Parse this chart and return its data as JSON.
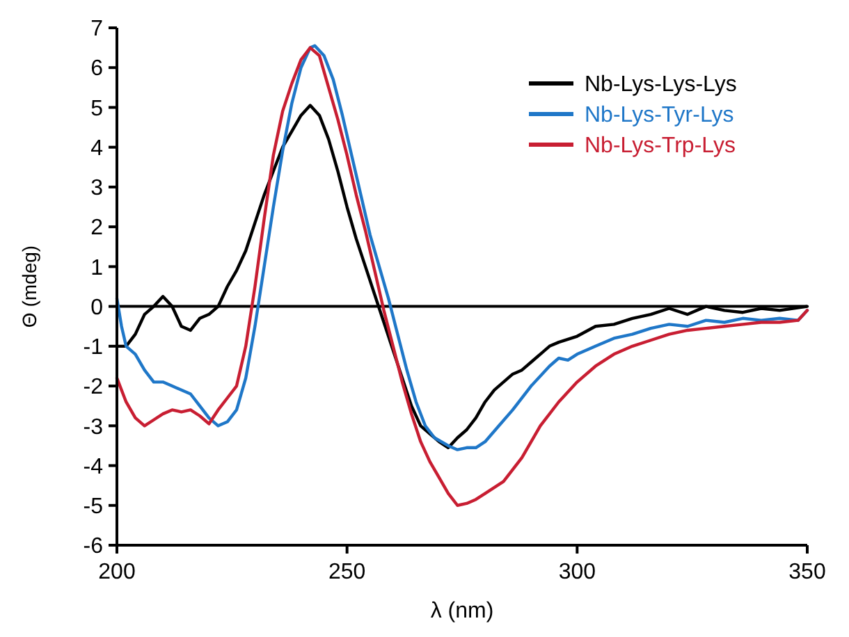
{
  "chart_data": {
    "type": "line",
    "xlabel": "λ (nm)",
    "ylabel": "Θ (mdeg)",
    "xlim": [
      200,
      350
    ],
    "xticks": [
      200,
      250,
      300,
      350
    ],
    "ylim": [
      -6,
      7
    ],
    "yticks": [
      -6,
      -5,
      -4,
      -3,
      -2,
      -1,
      0,
      1,
      2,
      3,
      4,
      5,
      6,
      7
    ],
    "legend": "top right",
    "grid": false,
    "line_style": "solid",
    "ref_lines": [
      {
        "axis": "y",
        "value": 0,
        "color": "#000000"
      }
    ],
    "series": [
      {
        "name": "Nb-Lys-Lys-Lys",
        "color": "#000000",
        "x": [
          200,
          202,
          204,
          206,
          208,
          210,
          212,
          214,
          216,
          218,
          220,
          222,
          224,
          226,
          228,
          230,
          232,
          234,
          236,
          238,
          240,
          242,
          244,
          246,
          248,
          250,
          252,
          254,
          256,
          258,
          260,
          262,
          264,
          266,
          268,
          270,
          272,
          274,
          276,
          278,
          280,
          282,
          284,
          286,
          288,
          290,
          292,
          294,
          296,
          300,
          304,
          308,
          312,
          316,
          320,
          324,
          328,
          332,
          336,
          340,
          344,
          350
        ],
        "values": [
          -1.0,
          -1.0,
          -0.7,
          -0.2,
          0.0,
          0.25,
          0.0,
          -0.5,
          -0.6,
          -0.3,
          -0.2,
          0.0,
          0.5,
          0.9,
          1.4,
          2.1,
          2.8,
          3.4,
          4.0,
          4.4,
          4.8,
          5.05,
          4.8,
          4.2,
          3.4,
          2.5,
          1.7,
          1.0,
          0.3,
          -0.4,
          -1.1,
          -1.8,
          -2.5,
          -3.0,
          -3.2,
          -3.4,
          -3.55,
          -3.3,
          -3.1,
          -2.8,
          -2.4,
          -2.1,
          -1.9,
          -1.7,
          -1.6,
          -1.4,
          -1.2,
          -1.0,
          -0.9,
          -0.75,
          -0.5,
          -0.45,
          -0.3,
          -0.2,
          -0.05,
          -0.2,
          0.0,
          -0.1,
          -0.15,
          -0.05,
          -0.1,
          0.0
        ]
      },
      {
        "name": "Nb-Lys-Tyr-Lys",
        "color": "#1f77c8",
        "x": [
          200,
          201,
          202,
          204,
          206,
          208,
          210,
          212,
          214,
          216,
          218,
          220,
          222,
          224,
          226,
          228,
          230,
          232,
          234,
          236,
          238,
          240,
          242,
          243,
          245,
          247,
          249,
          251,
          253,
          255,
          257,
          259,
          261,
          263,
          265,
          267,
          269,
          272,
          274,
          276,
          278,
          280,
          283,
          286,
          290,
          294,
          296,
          298,
          300,
          304,
          308,
          312,
          316,
          320,
          324,
          328,
          332,
          336,
          340,
          344,
          348,
          350
        ],
        "values": [
          0.2,
          -0.5,
          -1.0,
          -1.2,
          -1.6,
          -1.9,
          -1.9,
          -2.0,
          -2.1,
          -2.2,
          -2.5,
          -2.8,
          -3.0,
          -2.9,
          -2.6,
          -1.8,
          -0.5,
          1.0,
          2.5,
          3.9,
          5.1,
          6.0,
          6.5,
          6.55,
          6.3,
          5.7,
          4.8,
          3.8,
          2.8,
          1.8,
          1.0,
          0.2,
          -0.7,
          -1.6,
          -2.4,
          -3.0,
          -3.3,
          -3.5,
          -3.6,
          -3.55,
          -3.55,
          -3.4,
          -3.0,
          -2.6,
          -2.0,
          -1.5,
          -1.3,
          -1.35,
          -1.2,
          -1.0,
          -0.8,
          -0.7,
          -0.55,
          -0.45,
          -0.5,
          -0.35,
          -0.4,
          -0.3,
          -0.35,
          -0.3,
          -0.35,
          -0.1
        ]
      },
      {
        "name": "Nb-Lys-Trp-Lys",
        "color": "#c81e32",
        "x": [
          200,
          202,
          204,
          206,
          208,
          210,
          212,
          214,
          216,
          218,
          220,
          222,
          224,
          226,
          228,
          230,
          232,
          234,
          236,
          238,
          240,
          242,
          244,
          246,
          248,
          250,
          252,
          254,
          256,
          258,
          260,
          262,
          264,
          266,
          268,
          270,
          272,
          274,
          276,
          278,
          280,
          284,
          288,
          292,
          296,
          300,
          304,
          308,
          312,
          316,
          320,
          324,
          328,
          332,
          336,
          340,
          344,
          348,
          350
        ],
        "values": [
          -1.8,
          -2.4,
          -2.8,
          -3.0,
          -2.85,
          -2.7,
          -2.6,
          -2.65,
          -2.6,
          -2.75,
          -2.95,
          -2.6,
          -2.3,
          -2.0,
          -1.0,
          0.5,
          2.2,
          3.8,
          4.9,
          5.6,
          6.2,
          6.5,
          6.3,
          5.5,
          4.7,
          3.8,
          2.8,
          1.9,
          0.9,
          -0.1,
          -1.0,
          -1.9,
          -2.7,
          -3.4,
          -3.9,
          -4.3,
          -4.7,
          -5.0,
          -4.95,
          -4.85,
          -4.7,
          -4.4,
          -3.8,
          -3.0,
          -2.4,
          -1.9,
          -1.5,
          -1.2,
          -1.0,
          -0.85,
          -0.7,
          -0.6,
          -0.55,
          -0.5,
          -0.45,
          -0.4,
          -0.4,
          -0.35,
          -0.1
        ]
      }
    ]
  }
}
